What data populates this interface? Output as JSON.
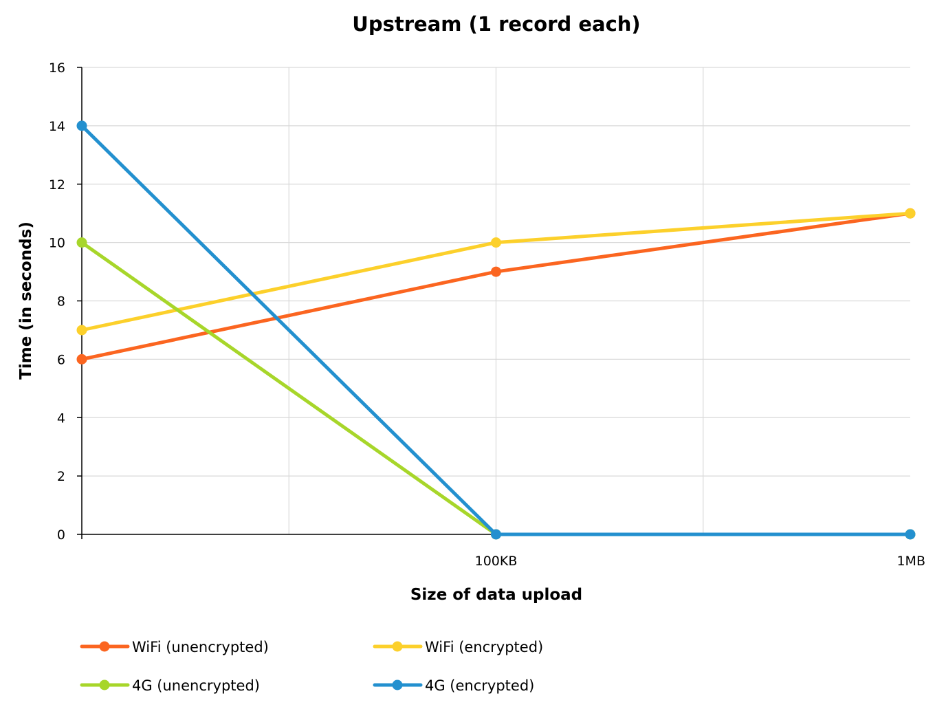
{
  "chart_data": {
    "type": "line",
    "title": "Upstream (1 record each)",
    "xlabel": "Size of data upload",
    "ylabel": "Time (in seconds)",
    "categories": [
      "",
      "100KB",
      "1MB"
    ],
    "ylim": [
      0,
      16
    ],
    "yticks": [
      0,
      2,
      4,
      6,
      8,
      10,
      12,
      14,
      16
    ],
    "grid": true,
    "legend_position": "bottom",
    "series": [
      {
        "name": "WiFi (unencrypted)",
        "color": "#fb6520",
        "values": [
          6,
          9,
          11
        ]
      },
      {
        "name": "WiFi (encrypted)",
        "color": "#fcd02b",
        "values": [
          7,
          10,
          11
        ]
      },
      {
        "name": "4G (unencrypted)",
        "color": "#a7d62a",
        "values": [
          10,
          0,
          0
        ]
      },
      {
        "name": "4G (encrypted)",
        "color": "#2390cf",
        "values": [
          14,
          0,
          0
        ]
      }
    ]
  }
}
